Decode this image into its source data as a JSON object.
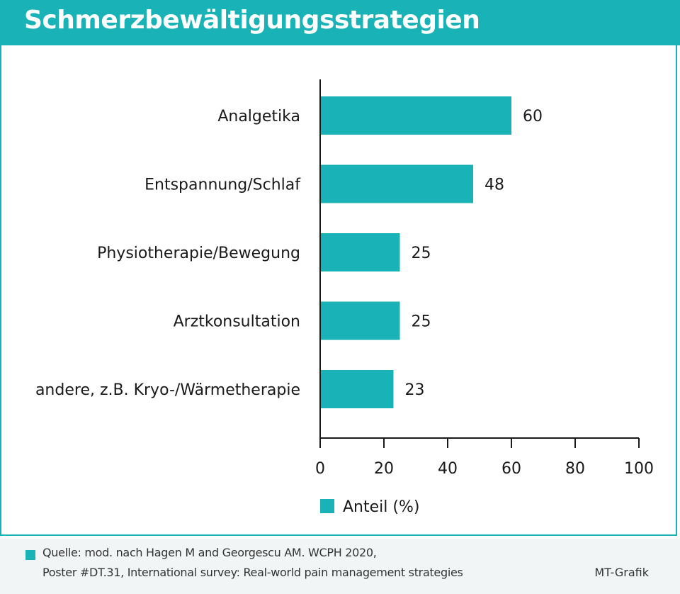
{
  "header": {
    "title": "Schmerzbewältigungsstrategien"
  },
  "chart_data": {
    "type": "bar",
    "orientation": "horizontal",
    "categories": [
      "Analgetika",
      "Entspannung/Schlaf",
      "Physiotherapie/Bewegung",
      "Arztkonsultation",
      "andere, z.B. Kryo-/Wärmetherapie"
    ],
    "series": [
      {
        "name": "Anteil (%)",
        "values": [
          60,
          48,
          25,
          25,
          23
        ]
      }
    ],
    "xlim": [
      0,
      100
    ],
    "xticks": [
      0,
      20,
      40,
      60,
      80,
      100
    ],
    "legend_placement": "bottom-center",
    "grid": false,
    "bar_color": "#19b2b6"
  },
  "footer": {
    "source_line1": "Quelle: mod. nach Hagen M and Georgescu AM. WCPH 2020,",
    "source_line2": "Poster #DT.31, International survey: Real-world pain management strategies",
    "credit": "MT-Grafik"
  }
}
